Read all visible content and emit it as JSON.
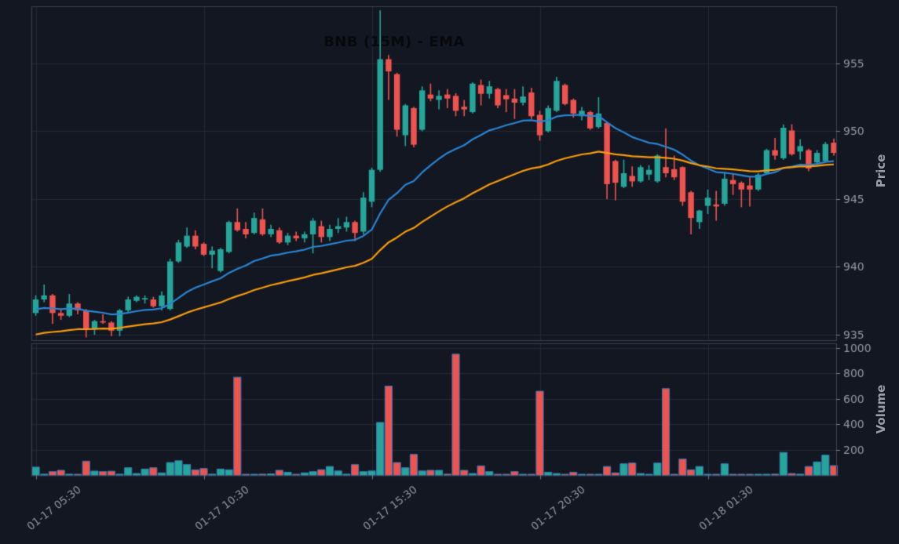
{
  "title": "BNB (15M) - EMA",
  "axes": {
    "price_label": "Price",
    "volume_label": "Volume",
    "price_ticks": [
      955,
      950,
      945,
      940,
      935
    ],
    "volume_ticks": [
      1000,
      800,
      600,
      400,
      200
    ],
    "x_tick_indices": [
      0,
      20,
      40,
      60,
      80
    ],
    "x_tick_labels": [
      "01-17 05:30",
      "01-17 10:30",
      "01-17 15:30",
      "01-17 20:30",
      "01-18 01:30"
    ]
  },
  "colors": {
    "background": "#131722",
    "up": "#26a69a",
    "down": "#ef5350",
    "ema_fast": "#2a84d2",
    "ema_slow": "#f99b0d",
    "grid": "#232937",
    "spine": "#3a3f4e",
    "tick_label": "#94979e",
    "volume_bar_edge": "#3679b5"
  },
  "chart_data": {
    "type": "candlestick",
    "symbol": "BNB",
    "timeframe": "15M",
    "title": "BNB (15M) - EMA",
    "ylabel": "Price",
    "ylabel2": "Volume",
    "price_range": [
      934.6,
      959.2
    ],
    "volume_range": [
      0,
      1035
    ],
    "grid": true,
    "indicators": [
      {
        "name": "EMA fast",
        "type": "ema",
        "period": 20,
        "seed": 936.8,
        "color": "#2a84d2"
      },
      {
        "name": "EMA slow",
        "type": "ema",
        "period": 45,
        "seed": 934.9,
        "color": "#f99b0d"
      }
    ],
    "x": [
      "01-17 05:30",
      "01-17 05:45",
      "01-17 06:00",
      "01-17 06:15",
      "01-17 06:30",
      "01-17 06:45",
      "01-17 07:00",
      "01-17 07:15",
      "01-17 07:30",
      "01-17 07:45",
      "01-17 08:00",
      "01-17 08:15",
      "01-17 08:30",
      "01-17 08:45",
      "01-17 09:00",
      "01-17 09:15",
      "01-17 09:30",
      "01-17 09:45",
      "01-17 10:00",
      "01-17 10:15",
      "01-17 10:30",
      "01-17 10:45",
      "01-17 11:00",
      "01-17 11:15",
      "01-17 11:30",
      "01-17 11:45",
      "01-17 12:00",
      "01-17 12:15",
      "01-17 12:30",
      "01-17 12:45",
      "01-17 13:00",
      "01-17 13:15",
      "01-17 13:30",
      "01-17 13:45",
      "01-17 14:00",
      "01-17 14:15",
      "01-17 14:30",
      "01-17 14:45",
      "01-17 15:00",
      "01-17 15:15",
      "01-17 15:30",
      "01-17 15:45",
      "01-17 16:00",
      "01-17 16:15",
      "01-17 16:30",
      "01-17 16:45",
      "01-17 17:00",
      "01-17 17:15",
      "01-17 17:30",
      "01-17 17:45",
      "01-17 18:00",
      "01-17 18:15",
      "01-17 18:30",
      "01-17 18:45",
      "01-17 19:00",
      "01-17 19:15",
      "01-17 19:30",
      "01-17 19:45",
      "01-17 20:00",
      "01-17 20:15",
      "01-17 20:30",
      "01-17 20:45",
      "01-17 21:00",
      "01-17 21:15",
      "01-17 21:30",
      "01-17 21:45",
      "01-17 22:00",
      "01-17 22:15",
      "01-17 22:30",
      "01-17 22:45",
      "01-17 23:00",
      "01-17 23:15",
      "01-17 23:30",
      "01-17 23:45",
      "01-18 00:00",
      "01-18 00:15",
      "01-18 00:30",
      "01-18 00:45",
      "01-18 01:00",
      "01-18 01:15",
      "01-18 01:30",
      "01-18 01:45",
      "01-18 02:00",
      "01-18 02:15",
      "01-18 02:30",
      "01-18 02:45",
      "01-18 03:00",
      "01-18 03:15",
      "01-18 03:30",
      "01-18 03:45",
      "01-18 04:00",
      "01-18 04:15",
      "01-18 04:30",
      "01-18 04:45",
      "01-18 05:00",
      "01-18 05:15"
    ],
    "ohlcv": [
      [
        936.6,
        937.9,
        936.4,
        937.6,
        65
      ],
      [
        937.6,
        938.7,
        937.4,
        937.9,
        10
      ],
      [
        937.9,
        938.0,
        935.8,
        936.6,
        30
      ],
      [
        936.6,
        936.9,
        936.1,
        936.4,
        40
      ],
      [
        936.4,
        938.0,
        936.3,
        937.3,
        10
      ],
      [
        937.3,
        937.4,
        936.5,
        936.8,
        8
      ],
      [
        936.8,
        936.9,
        934.8,
        935.4,
        112
      ],
      [
        935.4,
        936.1,
        935.0,
        936.0,
        34
      ],
      [
        936.0,
        936.5,
        935.8,
        935.9,
        30
      ],
      [
        935.9,
        936.0,
        934.9,
        935.3,
        33
      ],
      [
        935.3,
        936.9,
        934.9,
        936.8,
        10
      ],
      [
        936.8,
        937.8,
        936.7,
        937.6,
        60
      ],
      [
        937.5,
        937.9,
        937.4,
        937.8,
        15
      ],
      [
        937.6,
        937.9,
        937.3,
        937.7,
        50
      ],
      [
        937.6,
        937.8,
        937.0,
        937.1,
        60
      ],
      [
        937.1,
        938.2,
        936.8,
        937.9,
        20
      ],
      [
        936.9,
        940.6,
        936.8,
        940.4,
        101
      ],
      [
        940.4,
        942.0,
        940.3,
        941.8,
        115
      ],
      [
        941.5,
        942.9,
        941.4,
        942.3,
        85
      ],
      [
        942.3,
        942.7,
        941.3,
        941.5,
        44
      ],
      [
        941.7,
        941.8,
        940.8,
        940.9,
        54
      ],
      [
        940.9,
        941.5,
        939.9,
        941.2,
        10
      ],
      [
        939.7,
        941.4,
        939.6,
        941.3,
        50
      ],
      [
        941.1,
        943.4,
        941.0,
        943.3,
        44
      ],
      [
        943.3,
        944.3,
        942.6,
        942.7,
        770
      ],
      [
        942.8,
        943.3,
        942.1,
        942.4,
        8
      ],
      [
        942.5,
        944.0,
        942.4,
        943.6,
        8
      ],
      [
        943.5,
        944.3,
        942.3,
        942.4,
        10
      ],
      [
        942.4,
        943.1,
        942.2,
        942.8,
        12
      ],
      [
        942.7,
        942.9,
        941.7,
        941.8,
        40
      ],
      [
        941.8,
        942.5,
        941.6,
        942.3,
        25
      ],
      [
        942.3,
        942.6,
        941.9,
        942.1,
        8
      ],
      [
        942.1,
        942.6,
        941.8,
        942.4,
        20
      ],
      [
        942.4,
        943.6,
        941.0,
        943.4,
        30
      ],
      [
        943.0,
        943.4,
        941.8,
        942.2,
        45
      ],
      [
        942.2,
        943.1,
        941.9,
        942.8,
        70
      ],
      [
        942.8,
        943.6,
        942.5,
        943.0,
        35
      ],
      [
        942.9,
        943.7,
        942.6,
        943.3,
        10
      ],
      [
        943.3,
        943.4,
        941.9,
        942.5,
        85
      ],
      [
        942.6,
        945.5,
        942.4,
        945.1,
        30
      ],
      [
        944.8,
        947.3,
        944.4,
        947.15,
        35
      ],
      [
        947.15,
        958.9,
        947.0,
        955.3,
        415
      ],
      [
        955.3,
        955.6,
        952.3,
        954.4,
        700
      ],
      [
        954.2,
        954.3,
        949.6,
        950.1,
        101
      ],
      [
        949.7,
        952.0,
        948.9,
        951.9,
        60
      ],
      [
        951.7,
        951.8,
        948.8,
        949.0,
        165
      ],
      [
        950.1,
        953.3,
        950.0,
        953.0,
        35
      ],
      [
        952.7,
        953.5,
        952.2,
        952.4,
        40
      ],
      [
        952.3,
        953.0,
        951.6,
        952.6,
        40
      ],
      [
        952.7,
        953.1,
        951.7,
        952.4,
        10
      ],
      [
        952.6,
        952.8,
        951.1,
        951.5,
        950
      ],
      [
        951.8,
        952.3,
        951.1,
        951.6,
        40
      ],
      [
        951.4,
        953.6,
        951.3,
        953.5,
        15
      ],
      [
        953.4,
        953.8,
        951.9,
        952.75,
        75
      ],
      [
        952.75,
        953.7,
        952.4,
        953.3,
        30
      ],
      [
        953.1,
        953.2,
        951.7,
        951.9,
        5
      ],
      [
        952.65,
        953.1,
        951.4,
        952.35,
        8
      ],
      [
        952.4,
        953.1,
        950.9,
        952.1,
        30
      ],
      [
        952.1,
        953.3,
        951.9,
        952.55,
        8
      ],
      [
        952.85,
        953.2,
        950.9,
        951.1,
        8
      ],
      [
        951.2,
        951.5,
        949.3,
        949.7,
        660
      ],
      [
        950.0,
        951.9,
        949.9,
        951.7,
        25
      ],
      [
        951.5,
        954.0,
        951.4,
        953.7,
        15
      ],
      [
        953.4,
        953.5,
        951.9,
        952.0,
        8
      ],
      [
        952.3,
        952.4,
        951.0,
        951.3,
        25
      ],
      [
        951.1,
        951.8,
        950.8,
        951.5,
        5
      ],
      [
        951.4,
        951.5,
        950.1,
        950.2,
        5
      ],
      [
        950.3,
        952.5,
        950.2,
        951.3,
        5
      ],
      [
        950.6,
        950.7,
        945.0,
        946.1,
        70
      ],
      [
        947.8,
        947.9,
        944.9,
        946.2,
        20
      ],
      [
        945.9,
        947.9,
        945.8,
        946.9,
        91
      ],
      [
        946.7,
        947.4,
        945.9,
        946.3,
        97
      ],
      [
        946.3,
        947.5,
        946.2,
        947.35,
        15
      ],
      [
        946.8,
        947.5,
        946.4,
        947.15,
        5
      ],
      [
        946.3,
        948.3,
        946.2,
        948.2,
        97
      ],
      [
        947.35,
        950.2,
        946.6,
        946.9,
        680
      ],
      [
        947.2,
        948.2,
        946.4,
        946.6,
        5
      ],
      [
        947.35,
        947.4,
        944.5,
        944.8,
        128
      ],
      [
        945.5,
        945.6,
        942.4,
        943.6,
        44
      ],
      [
        943.3,
        944.2,
        942.8,
        944.15,
        70
      ],
      [
        944.5,
        945.7,
        943.9,
        945.1,
        5
      ],
      [
        944.6,
        945.6,
        943.4,
        944.45,
        5
      ],
      [
        944.65,
        947.0,
        944.5,
        946.5,
        91
      ],
      [
        946.4,
        946.9,
        945.3,
        946.1,
        5
      ],
      [
        946.2,
        946.3,
        944.4,
        945.7,
        8
      ],
      [
        946.0,
        946.6,
        944.45,
        945.7,
        8
      ],
      [
        945.7,
        946.9,
        945.6,
        946.8,
        8
      ],
      [
        946.9,
        948.7,
        946.8,
        948.6,
        8
      ],
      [
        948.6,
        949.5,
        947.9,
        948.2,
        10
      ],
      [
        948.0,
        950.5,
        947.9,
        950.25,
        180
      ],
      [
        950.05,
        950.5,
        948.2,
        948.3,
        15
      ],
      [
        948.5,
        949.4,
        947.9,
        948.9,
        10
      ],
      [
        948.6,
        948.7,
        947.05,
        947.25,
        70
      ],
      [
        947.7,
        948.6,
        947.5,
        948.4,
        106
      ],
      [
        947.8,
        949.2,
        947.7,
        949.05,
        159
      ],
      [
        949.15,
        949.45,
        948.2,
        948.4,
        77
      ]
    ]
  }
}
